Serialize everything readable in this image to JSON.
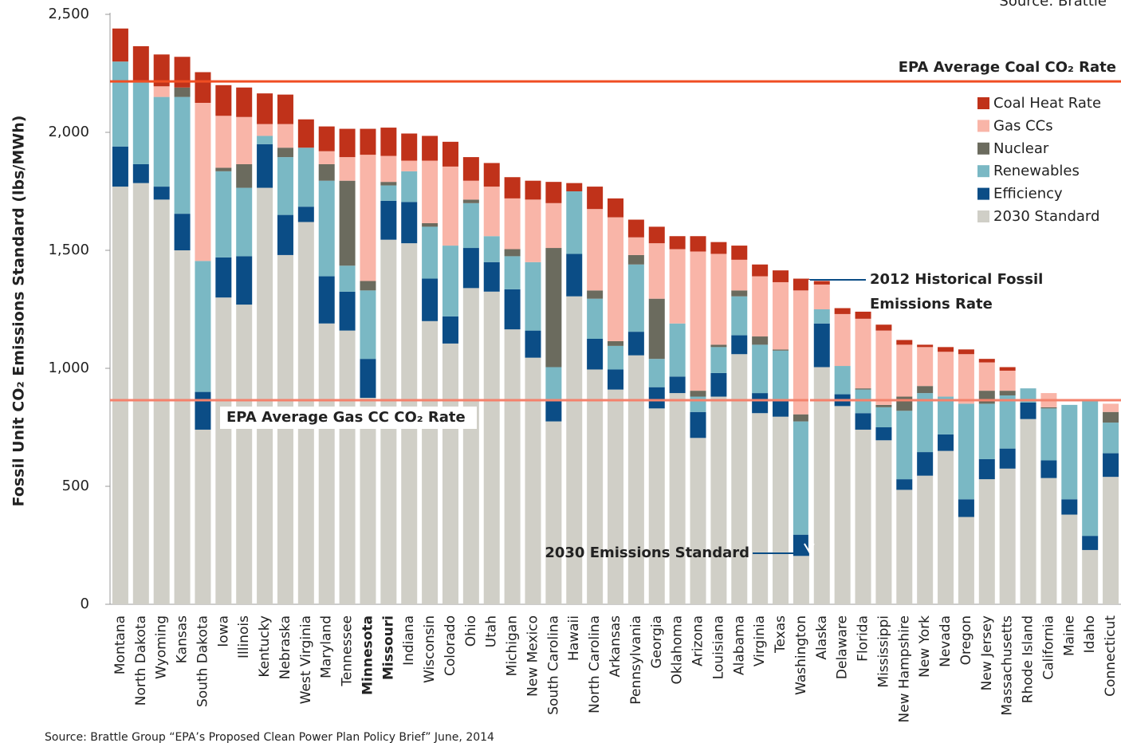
{
  "chart_data": {
    "type": "stacked_bar",
    "ylabel": "Fossil Unit CO₂ Emissions Standard (lbs/MWh)",
    "top_note": "Source:  Brattle",
    "source": "Source:  Brattle Group “EPA’s Proposed Clean Power Plan Policy Brief” June, 2014",
    "ylim": [
      0,
      2500
    ],
    "yticks": [
      0,
      500,
      {
        "value": 1000,
        "label": "1,000"
      },
      {
        "value": 1500,
        "label": "1,500"
      },
      {
        "value": 2000,
        "label": "2,000"
      },
      {
        "value": 2500,
        "label": "2,500"
      }
    ],
    "grid": false,
    "legend": "upper right",
    "highlight_color": "#e8412a",
    "highlight_indices": [
      12,
      13
    ],
    "categories": [
      "Montana",
      "North Dakota",
      "Wyoming",
      "Kansas",
      "South Dakota",
      "Iowa",
      "Illinois",
      "Kentucky",
      "Nebraska",
      "West Virginia",
      "Maryland",
      "Tennessee",
      "Minnesota",
      "Missouri",
      "Indiana",
      "Wisconsin",
      "Colorado",
      "Ohio",
      "Utah",
      "Michigan",
      "New Mexico",
      "South Carolina",
      "Hawaii",
      "North Carolina",
      "Arkansas",
      "Pennsylvania",
      "Georgia",
      "Oklahoma",
      "Arizona",
      "Louisiana",
      "Alabama",
      "Virginia",
      "Texas",
      "Washington",
      "Alaska",
      "Delaware",
      "Florida",
      "Mississippi",
      "New Hampshire",
      "New York",
      "Nevada",
      "Oregon",
      "New Jersey",
      "Massachusetts",
      "Rhode Island",
      "California",
      "Maine",
      "Idaho",
      "Connecticut"
    ],
    "series": [
      {
        "name": "2030 Standard",
        "color": "#d0cfc7",
        "values": [
          1770,
          1785,
          1715,
          1500,
          740,
          1300,
          1270,
          1765,
          1480,
          1620,
          1190,
          1160,
          875,
          1545,
          1530,
          1200,
          1105,
          1340,
          1325,
          1165,
          1045,
          775,
          1305,
          995,
          910,
          1055,
          830,
          895,
          705,
          880,
          1060,
          810,
          795,
          205,
          1005,
          840,
          740,
          695,
          485,
          545,
          650,
          370,
          530,
          575,
          785,
          535,
          380,
          230,
          540
        ]
      },
      {
        "name": "Efficiency",
        "color": "#0b4d86",
        "values": [
          170,
          80,
          55,
          155,
          160,
          170,
          205,
          185,
          170,
          65,
          200,
          165,
          165,
          165,
          175,
          180,
          115,
          170,
          125,
          170,
          115,
          90,
          180,
          130,
          85,
          100,
          90,
          70,
          110,
          100,
          80,
          85,
          65,
          90,
          185,
          50,
          70,
          55,
          45,
          100,
          70,
          75,
          85,
          85,
          70,
          75,
          65,
          60,
          100
        ]
      },
      {
        "name": "Renewables",
        "color": "#7ab8c4",
        "values": [
          360,
          355,
          380,
          495,
          555,
          365,
          290,
          35,
          245,
          250,
          405,
          110,
          290,
          65,
          130,
          220,
          300,
          190,
          110,
          140,
          290,
          140,
          265,
          170,
          100,
          285,
          120,
          225,
          65,
          110,
          165,
          205,
          215,
          480,
          60,
          120,
          100,
          85,
          290,
          250,
          160,
          405,
          235,
          225,
          60,
          220,
          400,
          570,
          130
        ]
      },
      {
        "name": "Nuclear",
        "color": "#6b6b5e",
        "values": [
          0,
          0,
          0,
          40,
          0,
          15,
          100,
          0,
          40,
          0,
          70,
          360,
          40,
          15,
          0,
          15,
          0,
          15,
          0,
          30,
          0,
          505,
          0,
          35,
          20,
          40,
          255,
          0,
          25,
          10,
          25,
          35,
          5,
          30,
          0,
          0,
          5,
          10,
          60,
          30,
          0,
          0,
          55,
          20,
          0,
          5,
          0,
          0,
          45
        ]
      },
      {
        "name": "Gas CCs",
        "color": "#f9b5a8",
        "values": [
          0,
          0,
          45,
          0,
          670,
          220,
          200,
          50,
          100,
          0,
          55,
          100,
          535,
          110,
          45,
          265,
          335,
          80,
          210,
          215,
          265,
          190,
          0,
          345,
          525,
          75,
          235,
          315,
          590,
          385,
          130,
          255,
          285,
          525,
          105,
          220,
          295,
          315,
          220,
          165,
          190,
          210,
          120,
          85,
          0,
          60,
          0,
          0,
          35
        ]
      },
      {
        "name": "Coal Heat Rate",
        "color": "#c0321a",
        "values": [
          140,
          145,
          135,
          130,
          130,
          130,
          125,
          130,
          125,
          120,
          105,
          120,
          110,
          120,
          115,
          105,
          105,
          100,
          100,
          90,
          80,
          90,
          35,
          95,
          80,
          75,
          70,
          55,
          65,
          50,
          60,
          50,
          50,
          50,
          15,
          25,
          30,
          25,
          20,
          10,
          20,
          20,
          15,
          15,
          0,
          0,
          0,
          0,
          0
        ]
      }
    ],
    "reference_lines": [
      {
        "label": "EPA Average Coal CO₂ Rate",
        "value": 2216,
        "color": "#f04e23"
      },
      {
        "label": "EPA Average Gas CC CO₂ Rate",
        "value": 865,
        "color": "#f4826c"
      }
    ],
    "annotation_historical": [
      "2012 Historical Fossil",
      "Emissions Rate"
    ],
    "annotation_standard": "2030 Emissions Standard"
  }
}
